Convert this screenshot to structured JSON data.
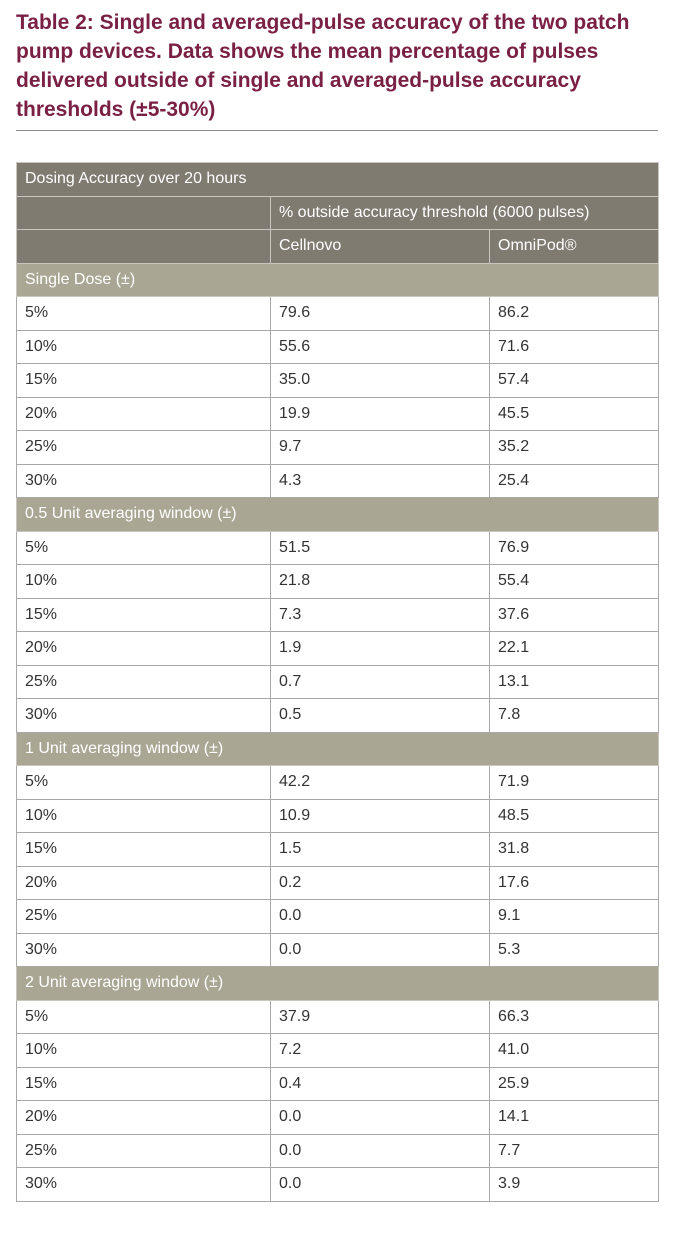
{
  "caption": "Table 2: Single and averaged-pulse accuracy of the two patch pump devices. Data shows the mean percentage of pulses delivered outside of single and averaged-pulse accuracy thresholds (±5-30%)",
  "table": {
    "title": "Dosing Accuracy over 20 hours",
    "group_header": "% outside accuracy threshold (6000 pulses)",
    "columns": [
      "Cellnovo",
      "OmniPod®"
    ],
    "sections": [
      {
        "label": "Single Dose (±)",
        "rows": [
          {
            "threshold": "5%",
            "cellnovo": "79.6",
            "omnipod": "86.2"
          },
          {
            "threshold": "10%",
            "cellnovo": "55.6",
            "omnipod": "71.6"
          },
          {
            "threshold": "15%",
            "cellnovo": "35.0",
            "omnipod": "57.4"
          },
          {
            "threshold": "20%",
            "cellnovo": "19.9",
            "omnipod": "45.5"
          },
          {
            "threshold": "25%",
            "cellnovo": "9.7",
            "omnipod": "35.2"
          },
          {
            "threshold": "30%",
            "cellnovo": "4.3",
            "omnipod": "25.4"
          }
        ]
      },
      {
        "label": "0.5 Unit averaging window (±)",
        "rows": [
          {
            "threshold": "5%",
            "cellnovo": "51.5",
            "omnipod": "76.9"
          },
          {
            "threshold": "10%",
            "cellnovo": "21.8",
            "omnipod": "55.4"
          },
          {
            "threshold": "15%",
            "cellnovo": "7.3",
            "omnipod": "37.6"
          },
          {
            "threshold": "20%",
            "cellnovo": "1.9",
            "omnipod": "22.1"
          },
          {
            "threshold": "25%",
            "cellnovo": "0.7",
            "omnipod": "13.1"
          },
          {
            "threshold": "30%",
            "cellnovo": "0.5",
            "omnipod": "7.8"
          }
        ]
      },
      {
        "label": "1 Unit averaging window (±)",
        "rows": [
          {
            "threshold": "5%",
            "cellnovo": "42.2",
            "omnipod": "71.9"
          },
          {
            "threshold": "10%",
            "cellnovo": "10.9",
            "omnipod": "48.5"
          },
          {
            "threshold": "15%",
            "cellnovo": "1.5",
            "omnipod": "31.8"
          },
          {
            "threshold": "20%",
            "cellnovo": "0.2",
            "omnipod": "17.6"
          },
          {
            "threshold": "25%",
            "cellnovo": "0.0",
            "omnipod": "9.1"
          },
          {
            "threshold": "30%",
            "cellnovo": "0.0",
            "omnipod": "5.3"
          }
        ]
      },
      {
        "label": "2 Unit averaging window (±)",
        "rows": [
          {
            "threshold": "5%",
            "cellnovo": "37.9",
            "omnipod": "66.3"
          },
          {
            "threshold": "10%",
            "cellnovo": "7.2",
            "omnipod": "41.0"
          },
          {
            "threshold": "15%",
            "cellnovo": "0.4",
            "omnipod": "25.9"
          },
          {
            "threshold": "20%",
            "cellnovo": "0.0",
            "omnipod": "14.1"
          },
          {
            "threshold": "25%",
            "cellnovo": "0.0",
            "omnipod": "7.7"
          },
          {
            "threshold": "30%",
            "cellnovo": "0.0",
            "omnipod": "3.9"
          }
        ]
      }
    ]
  },
  "colors": {
    "caption": "#7a2044",
    "header_dark": "#807b71",
    "header_light": "#aaa694"
  }
}
